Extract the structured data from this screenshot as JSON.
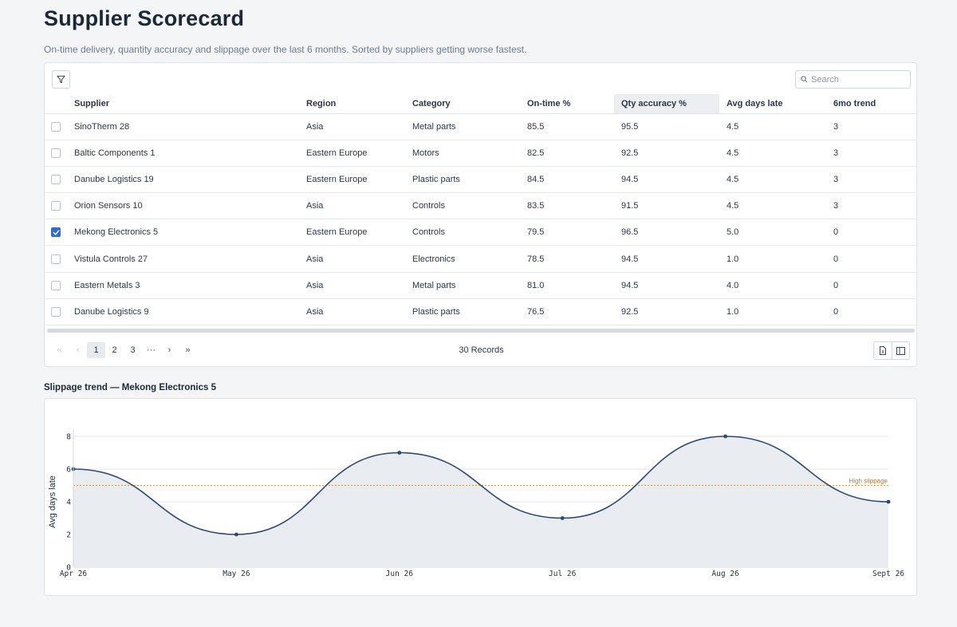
{
  "page": {
    "title": "Supplier Scorecard",
    "subtitle": "On-time delivery, quantity accuracy and slippage over the last 6 months. Sorted by suppliers getting worse fastest."
  },
  "toolbar": {
    "search_placeholder": "Search"
  },
  "table": {
    "columns": [
      "Supplier",
      "Region",
      "Category",
      "On-time %",
      "Qty accuracy %",
      "Avg days late",
      "6mo trend"
    ],
    "sorted_column": "Qty accuracy %",
    "rows": [
      {
        "checked": false,
        "supplier": "SinoTherm 28",
        "region": "Asia",
        "category": "Metal parts",
        "on_time": "85.5",
        "qty_accuracy": "95.5",
        "avg_days_late": "4.5",
        "trend": "3"
      },
      {
        "checked": false,
        "supplier": "Baltic Components 1",
        "region": "Eastern Europe",
        "category": "Motors",
        "on_time": "82.5",
        "qty_accuracy": "92.5",
        "avg_days_late": "4.5",
        "trend": "3"
      },
      {
        "checked": false,
        "supplier": "Danube Logistics 19",
        "region": "Eastern Europe",
        "category": "Plastic parts",
        "on_time": "84.5",
        "qty_accuracy": "94.5",
        "avg_days_late": "4.5",
        "trend": "3"
      },
      {
        "checked": false,
        "supplier": "Orion Sensors 10",
        "region": "Asia",
        "category": "Controls",
        "on_time": "83.5",
        "qty_accuracy": "91.5",
        "avg_days_late": "4.5",
        "trend": "3"
      },
      {
        "checked": true,
        "supplier": "Mekong Electronics 5",
        "region": "Eastern Europe",
        "category": "Controls",
        "on_time": "79.5",
        "qty_accuracy": "96.5",
        "avg_days_late": "5.0",
        "trend": "0"
      },
      {
        "checked": false,
        "supplier": "Vistula Controls 27",
        "region": "Asia",
        "category": "Electronics",
        "on_time": "78.5",
        "qty_accuracy": "94.5",
        "avg_days_late": "1.0",
        "trend": "0"
      },
      {
        "checked": false,
        "supplier": "Eastern Metals 3",
        "region": "Asia",
        "category": "Metal parts",
        "on_time": "81.0",
        "qty_accuracy": "94.5",
        "avg_days_late": "4.0",
        "trend": "0"
      },
      {
        "checked": false,
        "supplier": "Danube Logistics 9",
        "region": "Asia",
        "category": "Plastic parts",
        "on_time": "76.5",
        "qty_accuracy": "92.5",
        "avg_days_late": "1.0",
        "trend": "0"
      }
    ]
  },
  "pagination": {
    "pages": [
      "1",
      "2",
      "3"
    ],
    "ellipsis": "···",
    "current_page": "1",
    "records_label": "30 Records"
  },
  "chart_section": {
    "title": "Slippage trend — Mekong Electronics 5"
  },
  "colors": {
    "line": "#2d4a6e",
    "area": "#e9edf2",
    "reference": "#c9973f",
    "trend_up": "#d93a35",
    "trend_flat": "#8a95a2",
    "checkbox_checked": "#2f6bd8"
  },
  "chart_data": {
    "type": "area",
    "x": [
      "Apr 26",
      "May 26",
      "Jun 26",
      "Jul 26",
      "Aug 26",
      "Sept 26"
    ],
    "series": [
      {
        "values": [
          6,
          2,
          7,
          3,
          8,
          4
        ]
      }
    ],
    "ylabel": "Avg days late",
    "xlabel": "",
    "ylim": [
      0,
      8
    ],
    "yticks": [
      0,
      2,
      4,
      6,
      8
    ],
    "grid": true,
    "reference_line": {
      "value": 5,
      "label": "High slippage"
    }
  }
}
